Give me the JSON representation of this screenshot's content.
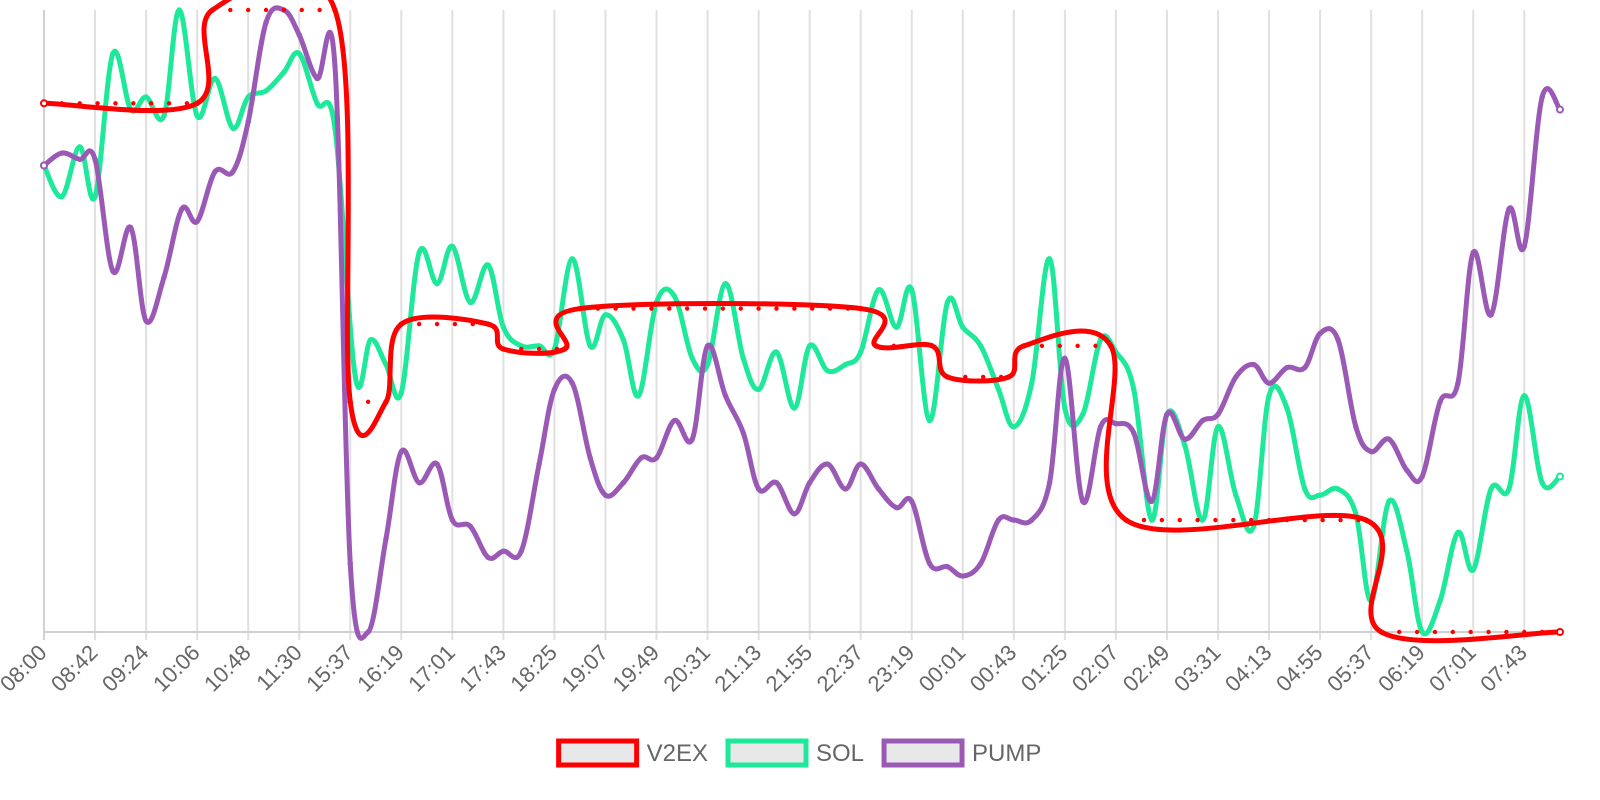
{
  "chart_data": {
    "type": "line",
    "title": "",
    "xlabel": "",
    "ylabel": "",
    "ylim": [
      0,
      100
    ],
    "x_ticks": [
      "08:00",
      "08:42",
      "09:24",
      "10:06",
      "10:48",
      "11:30",
      "15:37",
      "16:19",
      "17:01",
      "17:43",
      "18:25",
      "19:07",
      "19:49",
      "20:31",
      "21:13",
      "21:55",
      "22:37",
      "23:19",
      "00:01",
      "00:43",
      "01:25",
      "02:07",
      "02:49",
      "03:31",
      "04:13",
      "04:55",
      "05:37",
      "06:19",
      "07:01",
      "07:43"
    ],
    "grid": "vertical",
    "legend_position": "bottom-center",
    "series": [
      {
        "name": "V2EX",
        "color": "#ff0000",
        "stepped": true,
        "points": [
          [
            0,
            85
          ],
          [
            3,
            85
          ],
          [
            3.3,
            100
          ],
          [
            5.7,
            100
          ],
          [
            6,
            37
          ],
          [
            6.7,
            37
          ],
          [
            7,
            49.5
          ],
          [
            8.7,
            49.5
          ],
          [
            9,
            45.5
          ],
          [
            10.2,
            45.5
          ],
          [
            10.5,
            52
          ],
          [
            16,
            52
          ],
          [
            16.3,
            46
          ],
          [
            17.4,
            46
          ],
          [
            17.7,
            41
          ],
          [
            18.9,
            41
          ],
          [
            19.2,
            46
          ],
          [
            20.9,
            46
          ],
          [
            21.2,
            18
          ],
          [
            25.9,
            18
          ],
          [
            26.2,
            0
          ],
          [
            29.7,
            0
          ]
        ]
      },
      {
        "name": "SOL",
        "color": "#1ee89a",
        "points": [
          [
            0,
            75
          ],
          [
            0.35,
            70
          ],
          [
            0.7,
            78
          ],
          [
            1,
            70
          ],
          [
            1.35,
            93
          ],
          [
            1.7,
            84
          ],
          [
            2,
            86
          ],
          [
            2.35,
            83
          ],
          [
            2.65,
            100
          ],
          [
            3,
            83
          ],
          [
            3.35,
            89
          ],
          [
            3.7,
            81
          ],
          [
            4,
            86
          ],
          [
            4.35,
            87
          ],
          [
            4.7,
            90
          ],
          [
            5,
            93
          ],
          [
            5.35,
            85
          ],
          [
            5.7,
            81
          ],
          [
            6.1,
            41
          ],
          [
            6.4,
            47
          ],
          [
            6.7,
            43
          ],
          [
            7,
            38.5
          ],
          [
            7.35,
            61
          ],
          [
            7.7,
            56
          ],
          [
            8,
            62
          ],
          [
            8.35,
            53
          ],
          [
            8.7,
            59
          ],
          [
            9,
            49
          ],
          [
            9.35,
            46
          ],
          [
            9.7,
            46
          ],
          [
            10,
            45.5
          ],
          [
            10.35,
            60
          ],
          [
            10.7,
            46
          ],
          [
            11,
            51
          ],
          [
            11.35,
            47
          ],
          [
            11.65,
            38
          ],
          [
            12,
            53
          ],
          [
            12.35,
            54
          ],
          [
            12.7,
            44
          ],
          [
            13,
            43
          ],
          [
            13.35,
            56
          ],
          [
            13.7,
            44
          ],
          [
            14,
            39
          ],
          [
            14.35,
            45
          ],
          [
            14.7,
            36
          ],
          [
            15,
            46
          ],
          [
            15.35,
            42
          ],
          [
            15.7,
            43
          ],
          [
            16,
            45
          ],
          [
            16.35,
            55
          ],
          [
            16.7,
            49
          ],
          [
            17,
            55
          ],
          [
            17.35,
            34
          ],
          [
            17.7,
            53
          ],
          [
            18,
            49
          ],
          [
            18.35,
            46
          ],
          [
            18.7,
            39
          ],
          [
            19,
            33
          ],
          [
            19.35,
            40
          ],
          [
            19.7,
            60
          ],
          [
            20,
            36
          ],
          [
            20.35,
            35
          ],
          [
            20.7,
            47
          ],
          [
            21,
            45
          ],
          [
            21.35,
            39
          ],
          [
            21.7,
            18
          ],
          [
            22,
            35
          ],
          [
            22.35,
            30
          ],
          [
            22.7,
            18
          ],
          [
            23,
            33
          ],
          [
            23.35,
            22
          ],
          [
            23.7,
            17
          ],
          [
            24,
            38
          ],
          [
            24.35,
            36
          ],
          [
            24.7,
            23
          ],
          [
            25,
            22
          ],
          [
            25.35,
            23
          ],
          [
            25.7,
            19
          ],
          [
            26,
            5
          ],
          [
            26.35,
            21
          ],
          [
            26.7,
            13
          ],
          [
            27,
            0
          ],
          [
            27.35,
            5
          ],
          [
            27.7,
            16
          ],
          [
            28,
            10
          ],
          [
            28.35,
            23
          ],
          [
            28.7,
            23
          ],
          [
            29,
            38
          ],
          [
            29.35,
            24
          ],
          [
            29.7,
            25
          ]
        ]
      },
      {
        "name": "PUMP",
        "color": "#9b59b6",
        "points": [
          [
            0,
            75
          ],
          [
            0.35,
            77
          ],
          [
            0.7,
            76
          ],
          [
            1,
            76
          ],
          [
            1.35,
            58
          ],
          [
            1.7,
            65
          ],
          [
            2,
            50
          ],
          [
            2.35,
            57
          ],
          [
            2.7,
            68
          ],
          [
            3,
            66
          ],
          [
            3.35,
            74
          ],
          [
            3.7,
            74
          ],
          [
            4,
            82
          ],
          [
            4.35,
            98
          ],
          [
            4.7,
            100
          ],
          [
            5,
            96
          ],
          [
            5.35,
            89
          ],
          [
            5.7,
            91
          ],
          [
            6,
            11
          ],
          [
            6.35,
            0
          ],
          [
            6.7,
            15
          ],
          [
            7,
            29
          ],
          [
            7.35,
            24
          ],
          [
            7.7,
            27
          ],
          [
            8,
            18
          ],
          [
            8.35,
            17
          ],
          [
            8.7,
            12
          ],
          [
            9,
            13
          ],
          [
            9.35,
            13
          ],
          [
            9.7,
            27
          ],
          [
            10,
            39
          ],
          [
            10.35,
            40
          ],
          [
            10.7,
            28
          ],
          [
            11,
            22
          ],
          [
            11.35,
            24
          ],
          [
            11.7,
            28
          ],
          [
            12,
            28
          ],
          [
            12.35,
            34
          ],
          [
            12.7,
            31
          ],
          [
            13,
            46
          ],
          [
            13.35,
            38
          ],
          [
            13.7,
            32
          ],
          [
            14,
            23
          ],
          [
            14.35,
            24
          ],
          [
            14.7,
            19
          ],
          [
            15,
            24
          ],
          [
            15.35,
            27
          ],
          [
            15.7,
            23
          ],
          [
            16,
            27
          ],
          [
            16.35,
            23
          ],
          [
            16.7,
            20
          ],
          [
            17,
            21
          ],
          [
            17.35,
            11
          ],
          [
            17.7,
            10.5
          ],
          [
            18,
            9
          ],
          [
            18.35,
            11
          ],
          [
            18.7,
            18
          ],
          [
            19,
            18
          ],
          [
            19.35,
            18
          ],
          [
            19.7,
            24
          ],
          [
            20,
            44
          ],
          [
            20.35,
            21
          ],
          [
            20.7,
            33
          ],
          [
            21,
            33.5
          ],
          [
            21.35,
            32
          ],
          [
            21.7,
            21
          ],
          [
            22,
            35
          ],
          [
            22.35,
            31
          ],
          [
            22.7,
            34
          ],
          [
            23,
            35
          ],
          [
            23.35,
            41
          ],
          [
            23.7,
            43
          ],
          [
            24,
            40
          ],
          [
            24.35,
            42.5
          ],
          [
            24.7,
            42.5
          ],
          [
            25,
            48
          ],
          [
            25.35,
            47
          ],
          [
            25.7,
            33
          ],
          [
            26,
            29
          ],
          [
            26.35,
            31
          ],
          [
            26.7,
            26
          ],
          [
            27,
            25
          ],
          [
            27.35,
            37
          ],
          [
            27.7,
            40
          ],
          [
            28,
            61
          ],
          [
            28.35,
            51
          ],
          [
            28.7,
            68
          ],
          [
            29,
            62
          ],
          [
            29.35,
            86
          ],
          [
            29.7,
            84
          ]
        ]
      }
    ]
  }
}
